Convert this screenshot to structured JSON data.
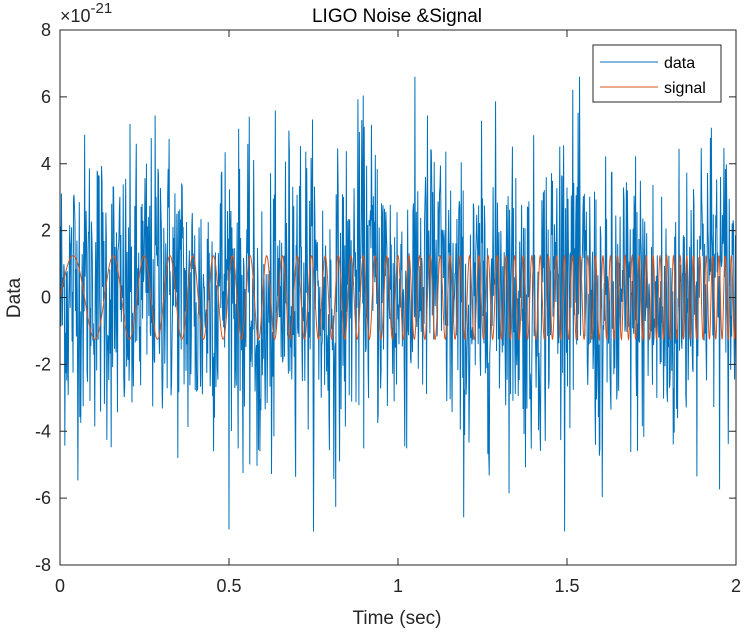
{
  "chart_data": {
    "type": "line",
    "title": "LIGO Noise &Signal",
    "xlabel": "Time (sec)",
    "ylabel": "Data",
    "xlim": [
      0,
      2
    ],
    "ylim": [
      -8,
      8
    ],
    "y_exponent_label": "×10",
    "y_exponent_power": "-21",
    "x_ticks": [
      "0",
      "0.5",
      "1",
      "1.5",
      "2"
    ],
    "y_ticks": [
      "-8",
      "-6",
      "-4",
      "-2",
      "0",
      "2",
      "4",
      "6",
      "8"
    ],
    "grid": false,
    "legend": "top-right",
    "series": [
      {
        "name": "data",
        "color": "#0072BD",
        "description": "random noise, approx. range -7 to 6.6",
        "x": [
          0,
          0.1,
          0.2,
          0.3,
          0.4,
          0.5,
          0.6,
          0.7,
          0.8,
          0.9,
          1.0,
          1.1,
          1.2,
          1.3,
          1.4,
          1.5,
          1.6,
          1.7,
          1.8,
          1.9,
          2.0
        ],
        "y": [
          0.1,
          2.2,
          -1.6,
          3.6,
          -1.8,
          2.9,
          -5.8,
          4.3,
          -3.1,
          4.6,
          -0.7,
          3.8,
          -3.4,
          3.0,
          -1.7,
          5.6,
          -4.4,
          0.4,
          -3.8,
          5.1,
          0.4
        ]
      },
      {
        "name": "signal",
        "color": "#D95319",
        "description": "chirp sinusoid, amplitude 1.25, frequency increasing with time",
        "amplitude": 1.25,
        "freq_start": 6,
        "freq_end": 55
      }
    ]
  }
}
